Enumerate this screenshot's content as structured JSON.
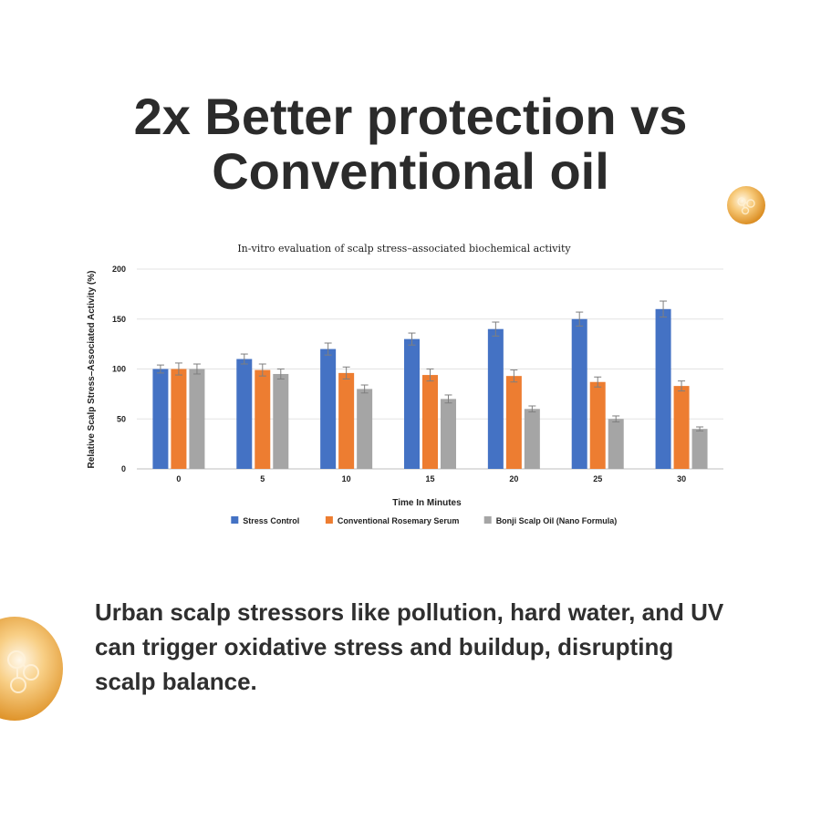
{
  "headline": {
    "line1": "2x Better protection vs",
    "line2": "Conventional oil"
  },
  "body_text": "Urban scalp stressors like pollution, hard water, and UV can trigger oxidative stress and buildup, disrupting scalp balance.",
  "decorations": {
    "small_droplet_icon": "serum-droplet-icon",
    "large_droplet_icon": "serum-droplet-icon"
  },
  "chart_data": {
    "type": "bar",
    "title": "In-vitro evaluation of scalp stress–associated biochemical activity",
    "xlabel": "Time In Minutes",
    "ylabel": "Relative Scalp Stress–Associated Activity (%)",
    "ylim": [
      0,
      200
    ],
    "yticks": [
      "0",
      "50",
      "100",
      "150",
      "200"
    ],
    "categories": [
      "0",
      "5",
      "10",
      "15",
      "20",
      "25",
      "30"
    ],
    "grid": true,
    "legend_position": "bottom",
    "error_bars": true,
    "series": [
      {
        "name": "Stress Control",
        "color": "#4472c4",
        "values": [
          100,
          110,
          120,
          130,
          140,
          150,
          160
        ],
        "errors": [
          4,
          5,
          6,
          6,
          7,
          7,
          8
        ]
      },
      {
        "name": "Conventional Rosemary Serum",
        "color": "#ed7d31",
        "values": [
          100,
          99,
          96,
          94,
          93,
          87,
          83
        ],
        "errors": [
          6,
          6,
          6,
          6,
          6,
          5,
          5
        ]
      },
      {
        "name": "Bonji Scalp Oil (Nano Formula)",
        "color": "#a5a5a5",
        "values": [
          100,
          95,
          80,
          70,
          60,
          50,
          40
        ],
        "errors": [
          5,
          5,
          4,
          4,
          3,
          3,
          2
        ]
      }
    ]
  }
}
